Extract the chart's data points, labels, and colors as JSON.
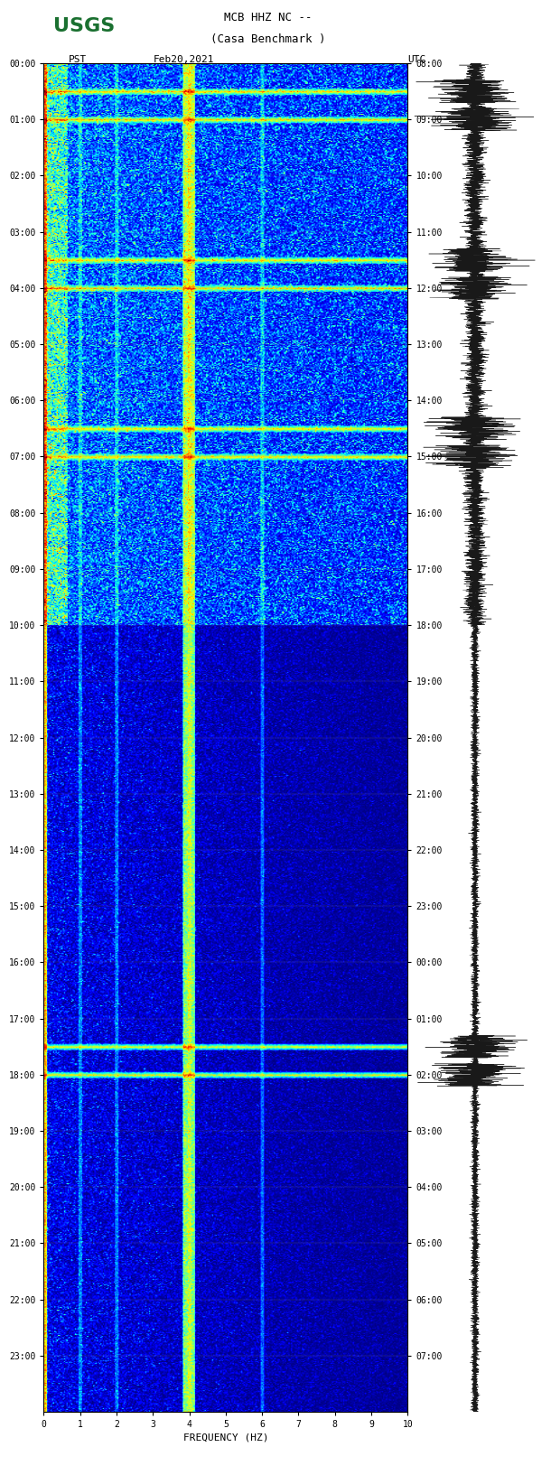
{
  "title_line1": "MCB HHZ NC --",
  "title_line2": "(Casa Benchmark )",
  "left_label": "PST",
  "date_label": "Feb20,2021",
  "right_label": "UTC",
  "xlabel": "FREQUENCY (HZ)",
  "left_times": [
    "00:00",
    "01:00",
    "02:00",
    "03:00",
    "04:00",
    "05:00",
    "06:00",
    "07:00",
    "08:00",
    "09:00",
    "10:00",
    "11:00",
    "12:00",
    "13:00",
    "14:00",
    "15:00",
    "16:00",
    "17:00",
    "18:00",
    "19:00",
    "20:00",
    "21:00",
    "22:00",
    "23:00"
  ],
  "right_times": [
    "08:00",
    "09:00",
    "10:00",
    "11:00",
    "12:00",
    "13:00",
    "14:00",
    "15:00",
    "16:00",
    "17:00",
    "18:00",
    "19:00",
    "20:00",
    "21:00",
    "22:00",
    "23:00",
    "00:00",
    "01:00",
    "02:00",
    "03:00",
    "04:00",
    "05:00",
    "06:00",
    "07:00"
  ],
  "freq_ticks": [
    0,
    1,
    2,
    3,
    4,
    5,
    6,
    7,
    8,
    9,
    10
  ],
  "freq_min": 0,
  "freq_max": 10,
  "n_time_steps": 1440,
  "n_freq_steps": 300,
  "background_color": "#ffffff",
  "spectrogram_colormap": "jet",
  "usgs_green": "#1a7030",
  "waveform_color": "#000000"
}
